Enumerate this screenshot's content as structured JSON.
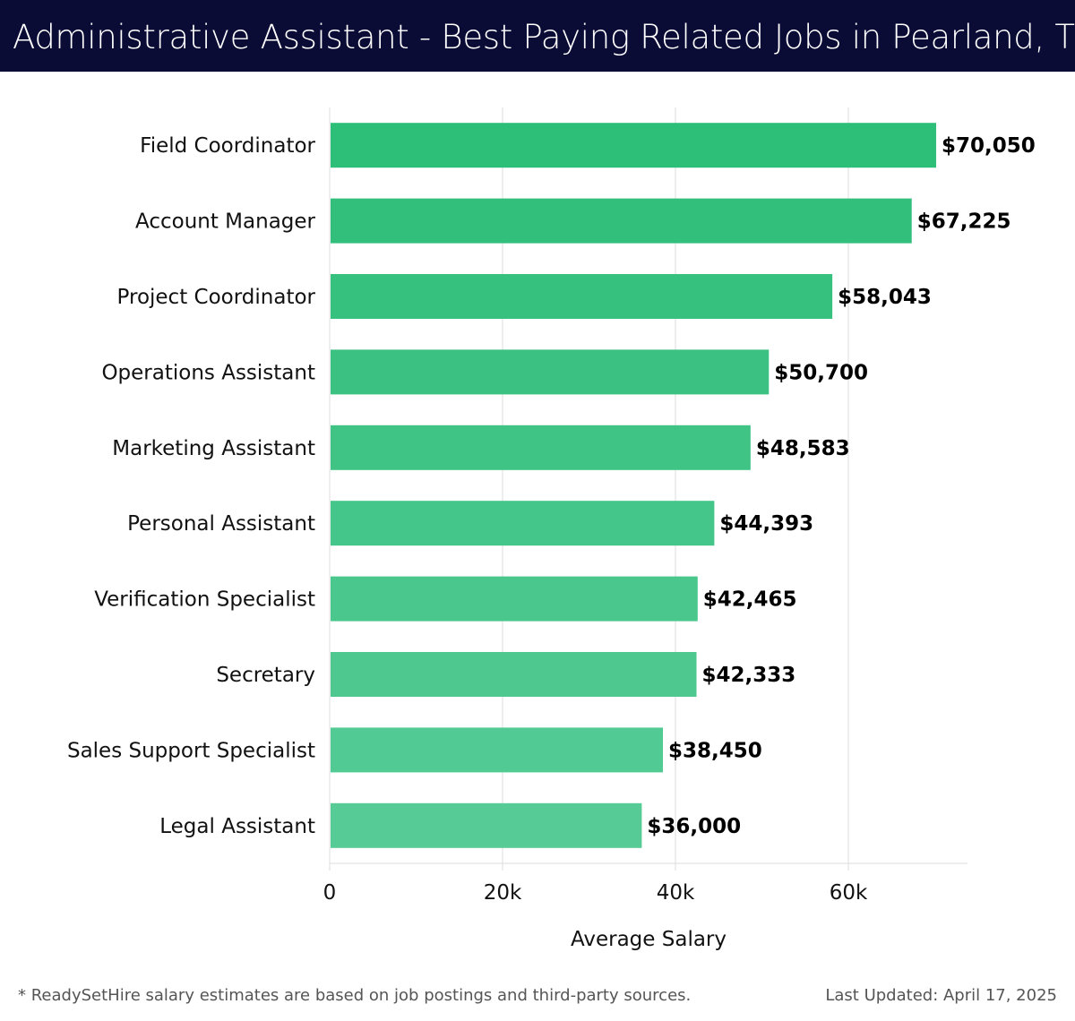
{
  "header": {
    "title": "Administrative Assistant - Best Paying Related Jobs in Pearland, TX"
  },
  "chart_data": {
    "type": "bar",
    "orientation": "horizontal",
    "categories": [
      "Field Coordinator",
      "Account Manager",
      "Project Coordinator",
      "Operations Assistant",
      "Marketing Assistant",
      "Personal Assistant",
      "Verification Specialist",
      "Secretary",
      "Sales Support Specialist",
      "Legal Assistant"
    ],
    "values": [
      70050,
      67225,
      58043,
      50700,
      48583,
      44393,
      42465,
      42333,
      38450,
      36000
    ],
    "value_labels": [
      "$70,050",
      "$67,225",
      "$58,043",
      "$50,700",
      "$48,583",
      "$44,393",
      "$42,465",
      "$42,333",
      "$38,450",
      "$36,000"
    ],
    "xlabel": "Average Salary",
    "ylabel": "",
    "xlim": [
      0,
      73800
    ],
    "xticks": [
      0,
      20000,
      40000,
      60000
    ],
    "xtick_labels": [
      "0",
      "20k",
      "40k",
      "60k"
    ],
    "grid": "vertical",
    "colors": {
      "top": "#2dbe78",
      "bottom": "#57cb96"
    }
  },
  "footer": {
    "note": "* ReadySetHire salary estimates are based on job postings and third-party sources.",
    "updated": "Last Updated: April 17, 2025"
  }
}
